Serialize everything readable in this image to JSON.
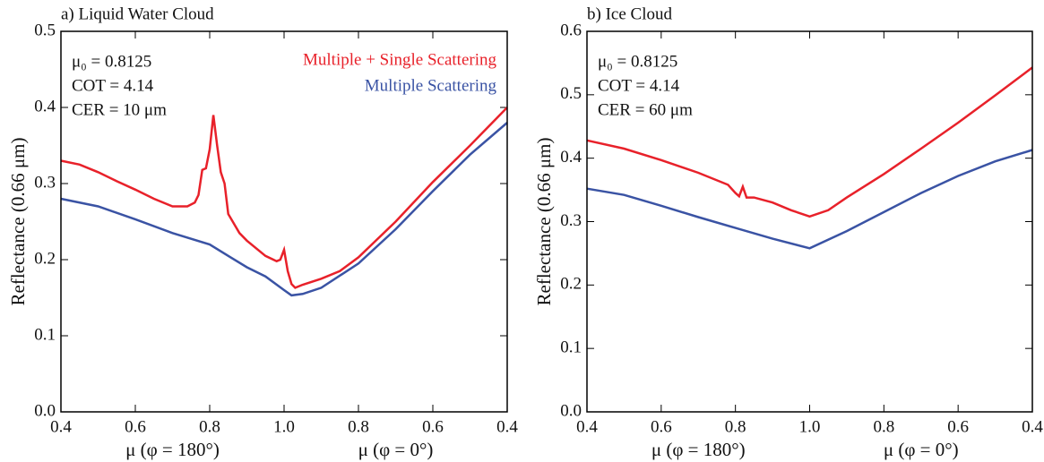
{
  "chart_data": [
    {
      "type": "line",
      "title": "a) Liquid Water Cloud",
      "xlabels": [
        "μ (φ = 180°)",
        "μ (φ = 0°)"
      ],
      "ylabel": "Reflectance  (0.66 μm)",
      "annotations": [
        "μ₀ = 0.8125",
        "COT = 4.14",
        "CER = 10 μm"
      ],
      "xlim": [
        0.4,
        1.6
      ],
      "xticks": [
        0.4,
        0.6,
        0.8,
        {
          "value": 1,
          "label": "1.0"
        },
        {
          "value": 1.2,
          "label": "0.8"
        },
        {
          "value": 1.4,
          "label": "0.6"
        },
        {
          "value": 1.6,
          "label": "0.4"
        }
      ],
      "ylim": [
        0,
        0.5
      ],
      "yticks": [
        {
          "value": 0,
          "label": "0.0"
        },
        0.1,
        0.2,
        0.3,
        0.4,
        0.5
      ],
      "series": [
        {
          "name": "Multiple + Single Scattering",
          "color": "#e8212a",
          "x": [
            0.4,
            0.45,
            0.5,
            0.55,
            0.6,
            0.65,
            0.7,
            0.74,
            0.76,
            0.77,
            0.78,
            0.79,
            0.8,
            0.81,
            0.82,
            0.83,
            0.84,
            0.85,
            0.88,
            0.9,
            0.95,
            0.98,
            0.99,
            1.0,
            1.01,
            1.02,
            1.03,
            1.05,
            1.1,
            1.15,
            1.2,
            1.3,
            1.4,
            1.5,
            1.6
          ],
          "values": [
            0.33,
            0.325,
            0.315,
            0.303,
            0.292,
            0.28,
            0.27,
            0.27,
            0.275,
            0.285,
            0.318,
            0.32,
            0.345,
            0.39,
            0.35,
            0.315,
            0.3,
            0.26,
            0.235,
            0.225,
            0.205,
            0.198,
            0.2,
            0.213,
            0.185,
            0.168,
            0.163,
            0.167,
            0.175,
            0.185,
            0.203,
            0.25,
            0.302,
            0.35,
            0.4
          ]
        },
        {
          "name": "Multiple Scattering",
          "color": "#3a53a4",
          "x": [
            0.4,
            0.5,
            0.6,
            0.7,
            0.8,
            0.85,
            0.9,
            0.95,
            1.0,
            1.02,
            1.05,
            1.1,
            1.2,
            1.3,
            1.4,
            1.5,
            1.6
          ],
          "values": [
            0.28,
            0.27,
            0.253,
            0.235,
            0.22,
            0.205,
            0.19,
            0.178,
            0.16,
            0.153,
            0.155,
            0.163,
            0.195,
            0.24,
            0.29,
            0.338,
            0.38
          ]
        }
      ]
    },
    {
      "type": "line",
      "title": "b) Ice Cloud",
      "xlabels": [
        "μ (φ = 180°)",
        "μ (φ = 0°)"
      ],
      "ylabel": "Reflectance  (0.66 μm)",
      "annotations": [
        "μ₀ = 0.8125",
        "COT = 4.14",
        "CER = 60 μm"
      ],
      "xlim": [
        0.4,
        1.6
      ],
      "xticks": [
        0.4,
        0.6,
        0.8,
        {
          "value": 1,
          "label": "1.0"
        },
        {
          "value": 1.2,
          "label": "0.8"
        },
        {
          "value": 1.4,
          "label": "0.6"
        },
        {
          "value": 1.6,
          "label": "0.4"
        }
      ],
      "ylim": [
        0,
        0.6
      ],
      "yticks": [
        {
          "value": 0,
          "label": "0.0"
        },
        0.1,
        0.2,
        0.3,
        0.4,
        0.5,
        0.6
      ],
      "series": [
        {
          "color": "#e8212a",
          "x": [
            0.4,
            0.5,
            0.6,
            0.7,
            0.78,
            0.8,
            0.81,
            0.82,
            0.83,
            0.85,
            0.9,
            0.95,
            1.0,
            1.05,
            1.1,
            1.2,
            1.3,
            1.4,
            1.5,
            1.6
          ],
          "values": [
            0.428,
            0.415,
            0.397,
            0.377,
            0.358,
            0.345,
            0.34,
            0.355,
            0.338,
            0.338,
            0.33,
            0.318,
            0.308,
            0.318,
            0.338,
            0.375,
            0.415,
            0.456,
            0.499,
            0.543
          ]
        },
        {
          "color": "#3a53a4",
          "x": [
            0.4,
            0.5,
            0.6,
            0.7,
            0.8,
            0.9,
            1.0,
            1.1,
            1.2,
            1.3,
            1.4,
            1.5,
            1.6
          ],
          "values": [
            0.352,
            0.342,
            0.325,
            0.307,
            0.29,
            0.273,
            0.258,
            0.285,
            0.315,
            0.345,
            0.372,
            0.395,
            0.413
          ]
        }
      ]
    }
  ]
}
